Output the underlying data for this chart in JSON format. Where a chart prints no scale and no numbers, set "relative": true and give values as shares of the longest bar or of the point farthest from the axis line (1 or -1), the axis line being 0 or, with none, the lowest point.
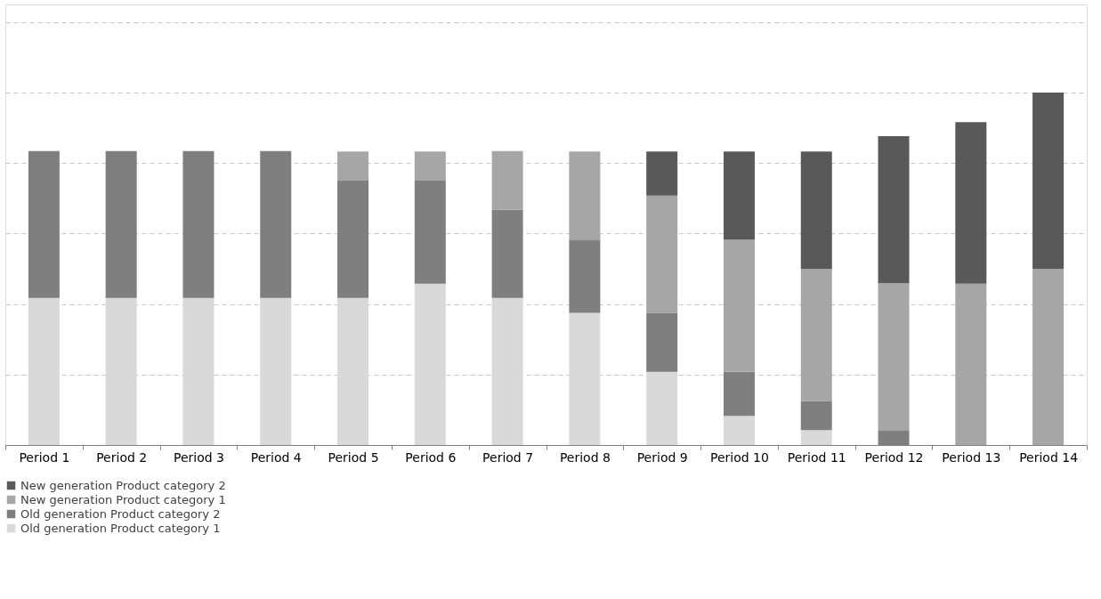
{
  "chart_data": {
    "type": "bar",
    "stacked": true,
    "relative": true,
    "grid": "y",
    "legend": "bottom",
    "categories": [
      "Period 1",
      "Period 2",
      "Period 3",
      "Period 4",
      "Period 5",
      "Period 6",
      "Period 7",
      "Period 8",
      "Period 9",
      "Period 10",
      "Period 11",
      "Period 12",
      "Period 13",
      "Period 14"
    ],
    "series": [
      {
        "name": "Old generation Product category 1",
        "color": "#d9d9d9",
        "values": [
          0.417,
          0.417,
          0.417,
          0.417,
          0.417,
          0.458,
          0.417,
          0.375,
          0.208,
          0.083,
          0.042,
          0,
          0,
          0
        ]
      },
      {
        "name": "Old generation Product category 2",
        "color": "#7f7f7f",
        "values": [
          0.417,
          0.417,
          0.417,
          0.417,
          0.333,
          0.292,
          0.25,
          0.208,
          0.167,
          0.125,
          0.083,
          0.042,
          0,
          0
        ]
      },
      {
        "name": "New generation Product category 1",
        "color": "#a6a6a6",
        "values": [
          0,
          0,
          0,
          0,
          0.083,
          0.083,
          0.167,
          0.25,
          0.333,
          0.375,
          0.375,
          0.417,
          0.458,
          0.5
        ]
      },
      {
        "name": "New generation Product category 2",
        "color": "#595959",
        "values": [
          0,
          0,
          0,
          0,
          0,
          0,
          0,
          0,
          0.125,
          0.25,
          0.333,
          0.417,
          0.458,
          0.5
        ]
      }
    ]
  }
}
